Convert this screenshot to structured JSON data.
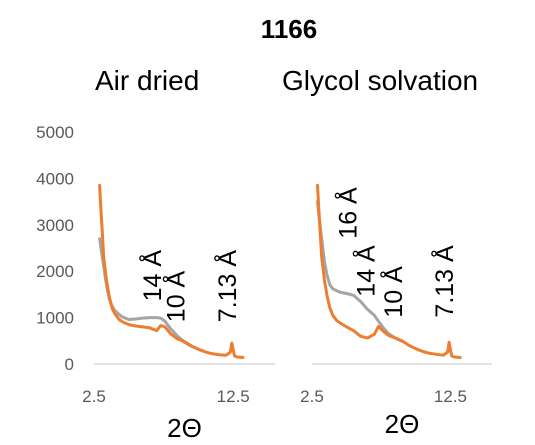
{
  "title": "1166",
  "colors": {
    "orange_series": "#ED7D31",
    "gray_series": "#A5A5A5",
    "axis": "#D9D9D9",
    "tick_text": "#595959"
  },
  "chart_data": [
    {
      "type": "line",
      "title": "Air dried",
      "xlabel": "2Θ",
      "ylabel": "",
      "xlim": [
        2.5,
        15.5
      ],
      "ylim": [
        0,
        5000
      ],
      "x_ticks": [
        "2.5",
        "12.5"
      ],
      "y_ticks": [
        "0",
        "1000",
        "2000",
        "3000",
        "4000",
        "5000"
      ],
      "grid": false,
      "legend": "none",
      "annotations": [
        {
          "text": "14 Å",
          "x": 7.3,
          "y": 1350
        },
        {
          "text": "10 Å",
          "x": 9.0,
          "y": 900
        },
        {
          "text": "7.13 Å",
          "x": 12.7,
          "y": 900
        }
      ],
      "series": [
        {
          "color": "#ED7D31",
          "x": [
            2.9,
            3.0,
            3.1,
            3.2,
            3.4,
            3.6,
            3.8,
            4.0,
            4.3,
            4.6,
            5.0,
            5.5,
            6.0,
            6.5,
            7.0,
            7.3,
            7.6,
            8.0,
            8.5,
            9.0,
            9.5,
            10.0,
            10.5,
            11.0,
            11.5,
            12.0,
            12.3,
            12.4,
            12.5,
            12.6,
            12.8,
            13.2
          ],
          "y": [
            3850,
            3300,
            2800,
            2300,
            1800,
            1450,
            1200,
            1080,
            960,
            900,
            850,
            820,
            800,
            780,
            720,
            830,
            800,
            650,
            540,
            480,
            390,
            320,
            260,
            220,
            200,
            190,
            260,
            450,
            300,
            170,
            150,
            140
          ]
        },
        {
          "color": "#A5A5A5",
          "x": [
            2.9,
            3.0,
            3.2,
            3.4,
            3.6,
            3.8,
            4.0,
            4.5,
            5.0,
            5.5,
            6.0,
            6.5,
            7.0,
            7.3,
            7.6,
            8.0,
            8.5,
            9.0,
            9.5,
            10.0,
            10.3
          ],
          "y": [
            2700,
            2500,
            2100,
            1700,
            1400,
            1250,
            1150,
            1020,
            960,
            970,
            990,
            1000,
            1000,
            990,
            920,
            760,
            600,
            470,
            380,
            320,
            280
          ]
        }
      ]
    },
    {
      "type": "line",
      "title": "Glycol solvation",
      "xlabel": "2Θ",
      "ylabel": "",
      "xlim": [
        2.5,
        15.5
      ],
      "ylim": [
        0,
        5000
      ],
      "x_ticks": [
        "2.5",
        "12.5"
      ],
      "y_ticks": [],
      "grid": false,
      "legend": "none",
      "annotations": [
        {
          "text": "16 Å",
          "x": 5.7,
          "y": 2700
        },
        {
          "text": "14 Å",
          "x": 7.0,
          "y": 1450
        },
        {
          "text": "10 Å",
          "x": 9.0,
          "y": 1000
        },
        {
          "text": "7.13 Å",
          "x": 12.7,
          "y": 1000
        }
      ],
      "series": [
        {
          "color": "#ED7D31",
          "x": [
            2.9,
            3.0,
            3.1,
            3.2,
            3.4,
            3.6,
            3.8,
            4.0,
            4.3,
            4.6,
            5.0,
            5.5,
            6.0,
            6.5,
            7.0,
            7.3,
            7.6,
            8.0,
            8.5,
            9.0,
            9.5,
            10.0,
            10.5,
            11.0,
            11.5,
            12.0,
            12.3,
            12.4,
            12.5,
            12.6,
            12.8,
            13.2
          ],
          "y": [
            3850,
            3300,
            2800,
            2300,
            1800,
            1450,
            1200,
            1050,
            930,
            870,
            800,
            720,
            600,
            560,
            640,
            810,
            720,
            620,
            560,
            500,
            400,
            330,
            270,
            230,
            210,
            190,
            260,
            470,
            300,
            170,
            150,
            140
          ]
        },
        {
          "color": "#A5A5A5",
          "x": [
            2.9,
            3.0,
            3.2,
            3.4,
            3.6,
            3.8,
            4.0,
            4.5,
            5.0,
            5.5,
            6.0,
            6.5,
            7.0,
            7.3,
            7.6,
            8.0,
            8.5,
            9.0
          ],
          "y": [
            3500,
            3200,
            2700,
            2200,
            1900,
            1700,
            1620,
            1550,
            1520,
            1480,
            1350,
            1180,
            1050,
            920,
            800,
            660,
            560,
            490
          ]
        }
      ]
    }
  ]
}
